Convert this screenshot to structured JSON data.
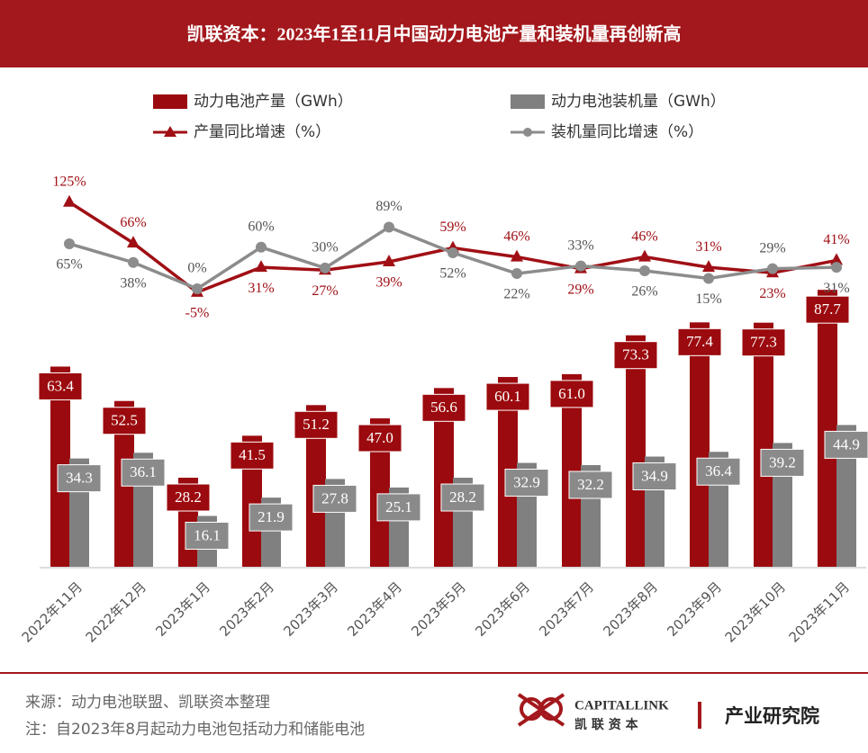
{
  "chart_data": {
    "type": "combo",
    "title": "凯联资本：2023年1至11月中国动力电池产量和装机量再创新高",
    "categories": [
      "2022年11月",
      "2022年12月",
      "2023年1月",
      "2023年2月",
      "2023年3月",
      "2023年4月",
      "2023年5月",
      "2023年6月",
      "2023年7月",
      "2023年8月",
      "2023年9月",
      "2023年10月",
      "2023年11月"
    ],
    "series": [
      {
        "name": "动力电池产量（GWh）",
        "type": "bar",
        "color": "#9b0a0e",
        "values": [
          63.4,
          52.5,
          28.2,
          41.5,
          51.2,
          47.0,
          56.6,
          60.1,
          61.0,
          73.3,
          77.4,
          77.3,
          87.7
        ],
        "value_labels": [
          "63.4",
          "52.5",
          "28.2",
          "41.5",
          "51.2",
          "47.0",
          "56.6",
          "60.1",
          "61.0",
          "73.3",
          "77.4",
          "77.3",
          "87.7"
        ]
      },
      {
        "name": "动力电池装机量（GWh）",
        "type": "bar",
        "color": "#808080",
        "values": [
          34.3,
          36.1,
          16.1,
          21.9,
          27.8,
          25.1,
          28.2,
          32.9,
          32.2,
          34.9,
          36.4,
          39.2,
          44.9
        ],
        "value_labels": [
          "34.3",
          "36.1",
          "16.1",
          "21.9",
          "27.8",
          "25.1",
          "28.2",
          "32.9",
          "32.2",
          "34.9",
          "36.4",
          "39.2",
          "44.9"
        ]
      },
      {
        "name": "产量同比增速（%）",
        "type": "line",
        "marker": "triangle",
        "color": "#a00f15",
        "values": [
          125,
          66,
          -5,
          31,
          27,
          39,
          59,
          46,
          29,
          46,
          31,
          23,
          41
        ],
        "value_labels": [
          "125%",
          "66%",
          "-5%",
          "31%",
          "27%",
          "39%",
          "59%",
          "46%",
          "29%",
          "46%",
          "31%",
          "23%",
          "41%"
        ]
      },
      {
        "name": "装机量同比增速（%）",
        "type": "line",
        "marker": "circle",
        "color": "#8c8c8c",
        "values": [
          65,
          38,
          0,
          60,
          30,
          89,
          52,
          22,
          33,
          26,
          15,
          29,
          31
        ],
        "value_labels": [
          "65%",
          "38%",
          "0%",
          "60%",
          "30%",
          "89%",
          "52%",
          "22%",
          "33%",
          "26%",
          "15%",
          "29%",
          "31%"
        ]
      }
    ]
  },
  "footer": {
    "source": "来源：动力电池联盟、凯联资本整理",
    "note": "注：自2023年8月起动力电池包括动力和储能电池",
    "brand": "CAPITALLINK",
    "brand_cn": "凯 联 资 本",
    "institute": "产业研究院"
  }
}
